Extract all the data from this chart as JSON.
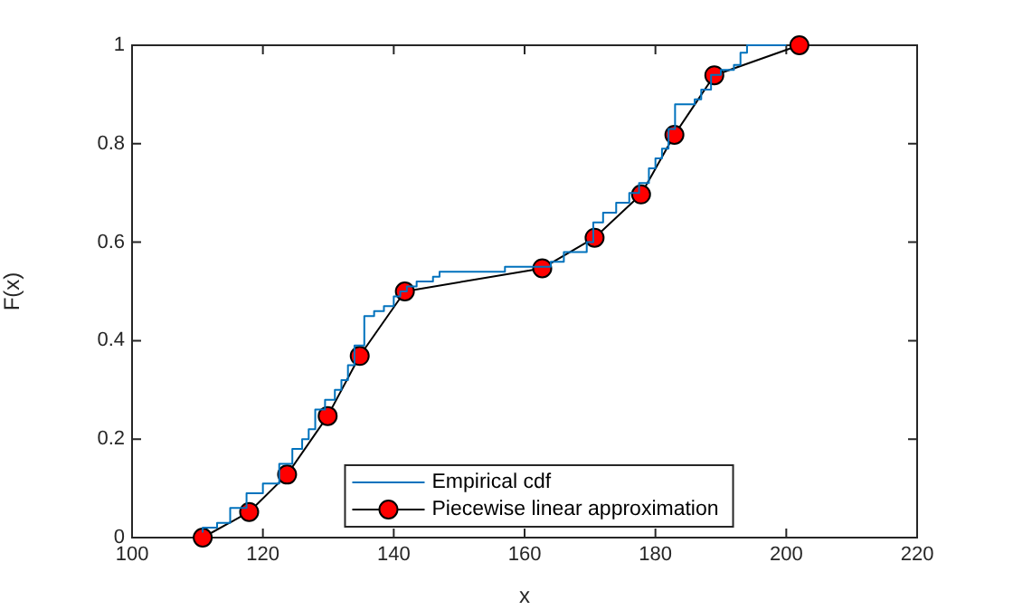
{
  "chart_data": {
    "type": "line",
    "xlabel": "x",
    "ylabel": "F(x)",
    "xlim": [
      100,
      220
    ],
    "xticks": [
      100,
      120,
      140,
      160,
      180,
      200,
      220
    ],
    "ylim": [
      0,
      1
    ],
    "yticks": [
      0,
      0.2,
      0.4,
      0.6,
      0.8,
      1
    ],
    "grid": false,
    "legend": "bottom",
    "series": [
      {
        "name": "Empirical cdf",
        "type": "step",
        "color": "#0072bd",
        "marker": "none",
        "x": [
          110.8,
          113,
          115,
          117.5,
          120,
          122.5,
          124.5,
          126,
          127,
          128,
          129.5,
          131,
          132,
          133,
          134,
          135.5,
          137,
          138.5,
          140,
          141,
          142,
          143.5,
          146,
          147,
          157,
          164,
          166,
          169.5,
          170.5,
          172,
          174,
          176,
          177.5,
          179,
          180,
          181,
          182,
          183,
          186,
          187,
          188.5,
          190,
          192,
          193,
          194,
          200
        ],
        "values": [
          0.01,
          0.02,
          0.03,
          0.06,
          0.09,
          0.11,
          0.15,
          0.18,
          0.2,
          0.22,
          0.26,
          0.28,
          0.3,
          0.32,
          0.35,
          0.39,
          0.45,
          0.46,
          0.47,
          0.49,
          0.5,
          0.51,
          0.52,
          0.53,
          0.54,
          0.55,
          0.56,
          0.58,
          0.6,
          0.64,
          0.66,
          0.68,
          0.7,
          0.72,
          0.75,
          0.77,
          0.79,
          0.83,
          0.88,
          0.89,
          0.91,
          0.94,
          0.95,
          0.96,
          0.985,
          1
        ]
      },
      {
        "name": "Piecewise linear approximation",
        "type": "line",
        "color": "#000000",
        "marker": "circle",
        "x": [
          110.8,
          117.9,
          123.7,
          129.9,
          134.8,
          141.7,
          162.7,
          170.7,
          177.8,
          182.9,
          189,
          202
        ],
        "values": [
          0,
          0.052,
          0.128,
          0.247,
          0.369,
          0.5,
          0.547,
          0.609,
          0.697,
          0.818,
          0.939,
          1
        ]
      }
    ]
  }
}
